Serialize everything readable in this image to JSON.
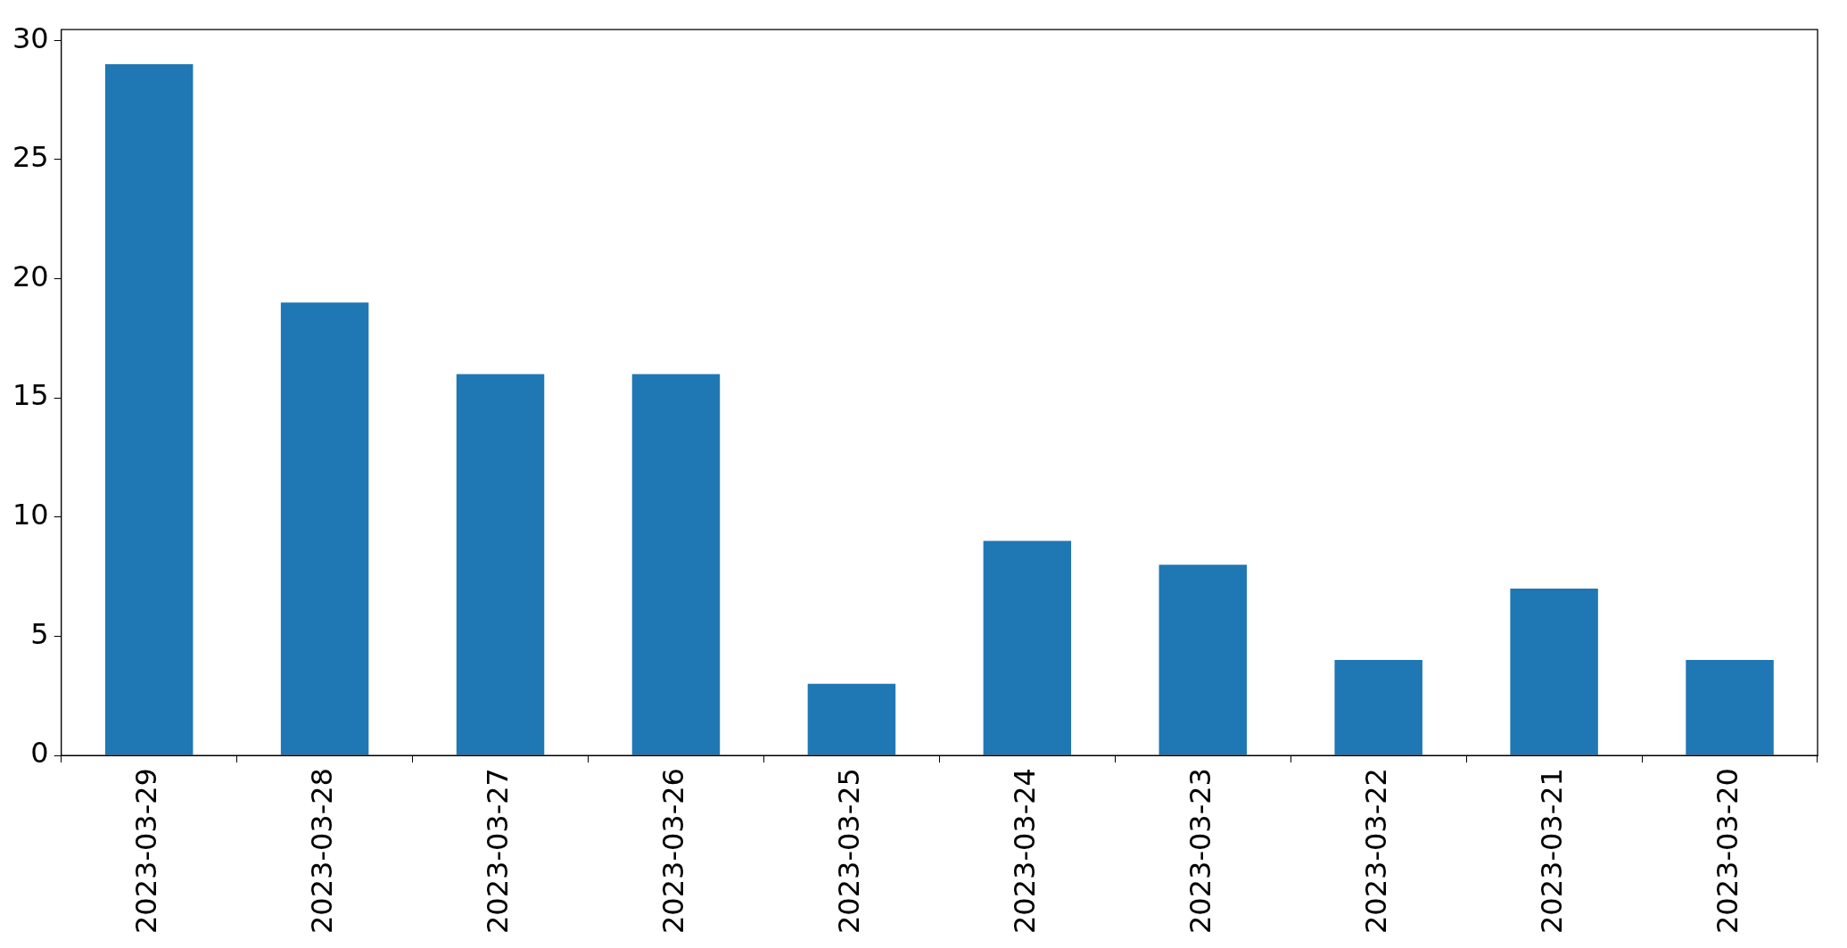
{
  "chart_data": {
    "type": "bar",
    "categories": [
      "2023-03-29",
      "2023-03-28",
      "2023-03-27",
      "2023-03-26",
      "2023-03-25",
      "2023-03-24",
      "2023-03-23",
      "2023-03-22",
      "2023-03-21",
      "2023-03-20"
    ],
    "values": [
      29,
      19,
      16,
      16,
      3,
      9,
      8,
      4,
      7,
      4
    ],
    "color": "#1f77b4",
    "ylim": [
      0,
      30.45
    ],
    "yticks": [
      0,
      5,
      10,
      15,
      20,
      25,
      30
    ],
    "grid": false,
    "legend": false
  }
}
